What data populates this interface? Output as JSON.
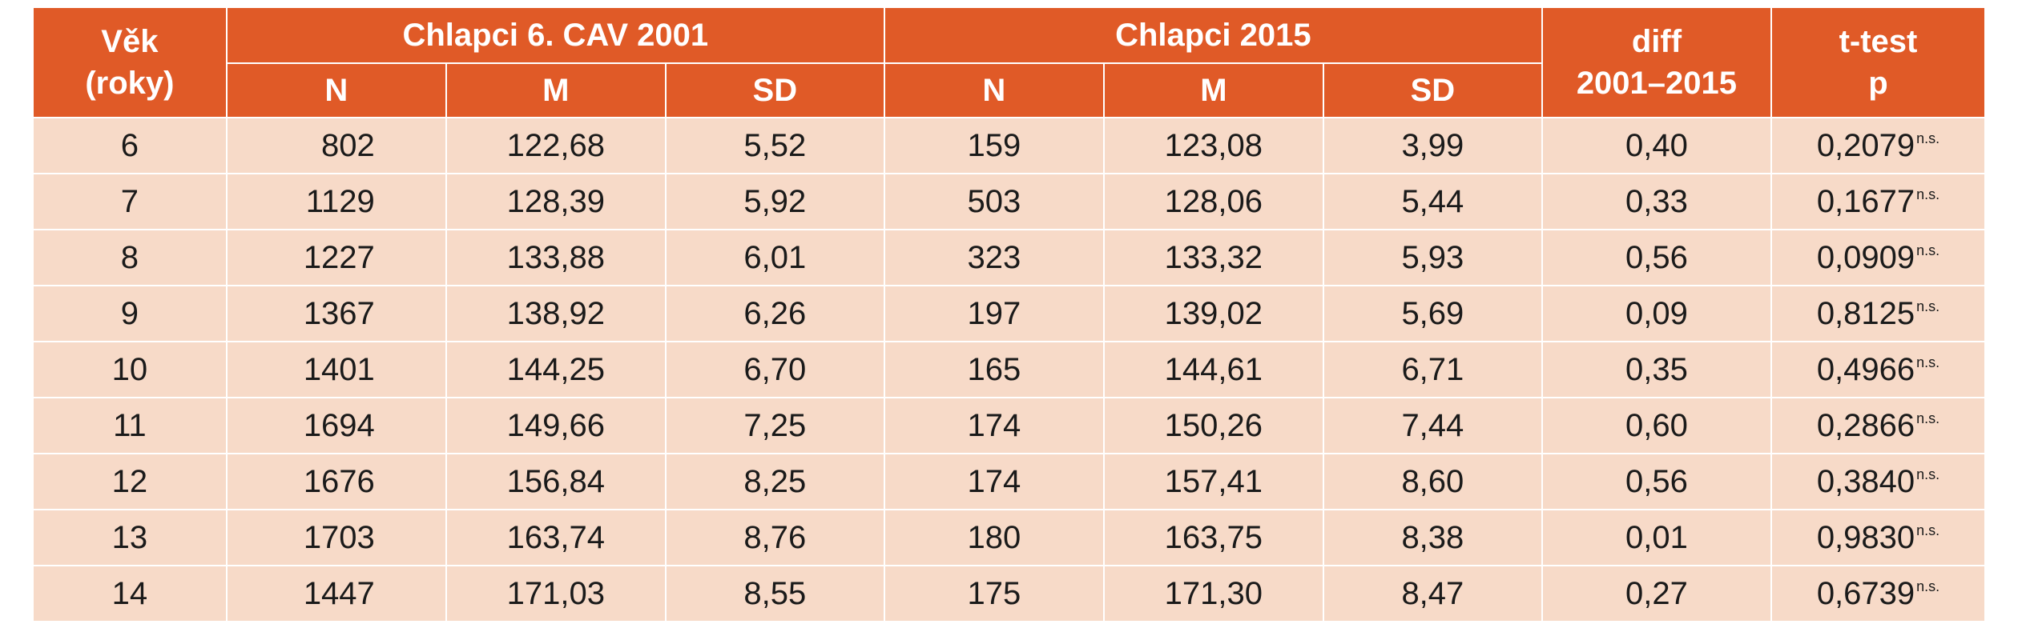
{
  "header": {
    "age_line1": "Věk",
    "age_line2": "(roky)",
    "group_2001": "Chlapci 6. CAV 2001",
    "group_2015": "Chlapci 2015",
    "diff_line1": "diff",
    "diff_line2": "2001–2015",
    "ttest_line1": "t-test",
    "ttest_line2": "p",
    "n": "N",
    "m": "M",
    "sd": "SD"
  },
  "colors": {
    "header_bg": "#e05a27",
    "row_bg": "#f7dac8"
  },
  "rows": [
    {
      "age": "6",
      "n2001": "802",
      "m2001": "122,68",
      "sd2001": "5,52",
      "n2015": "159",
      "m2015": "123,08",
      "sd2015": "3,99",
      "diff": "0,40",
      "p": "0,2079",
      "sig": "n.s."
    },
    {
      "age": "7",
      "n2001": "1129",
      "m2001": "128,39",
      "sd2001": "5,92",
      "n2015": "503",
      "m2015": "128,06",
      "sd2015": "5,44",
      "diff": "0,33",
      "p": "0,1677",
      "sig": "n.s."
    },
    {
      "age": "8",
      "n2001": "1227",
      "m2001": "133,88",
      "sd2001": "6,01",
      "n2015": "323",
      "m2015": "133,32",
      "sd2015": "5,93",
      "diff": "0,56",
      "p": "0,0909",
      "sig": "n.s."
    },
    {
      "age": "9",
      "n2001": "1367",
      "m2001": "138,92",
      "sd2001": "6,26",
      "n2015": "197",
      "m2015": "139,02",
      "sd2015": "5,69",
      "diff": "0,09",
      "p": "0,8125",
      "sig": "n.s."
    },
    {
      "age": "10",
      "n2001": "1401",
      "m2001": "144,25",
      "sd2001": "6,70",
      "n2015": "165",
      "m2015": "144,61",
      "sd2015": "6,71",
      "diff": "0,35",
      "p": "0,4966",
      "sig": "n.s."
    },
    {
      "age": "11",
      "n2001": "1694",
      "m2001": "149,66",
      "sd2001": "7,25",
      "n2015": "174",
      "m2015": "150,26",
      "sd2015": "7,44",
      "diff": "0,60",
      "p": "0,2866",
      "sig": "n.s."
    },
    {
      "age": "12",
      "n2001": "1676",
      "m2001": "156,84",
      "sd2001": "8,25",
      "n2015": "174",
      "m2015": "157,41",
      "sd2015": "8,60",
      "diff": "0,56",
      "p": "0,3840",
      "sig": "n.s."
    },
    {
      "age": "13",
      "n2001": "1703",
      "m2001": "163,74",
      "sd2001": "8,76",
      "n2015": "180",
      "m2015": "163,75",
      "sd2015": "8,38",
      "diff": "0,01",
      "p": "0,9830",
      "sig": "n.s."
    },
    {
      "age": "14",
      "n2001": "1447",
      "m2001": "171,03",
      "sd2001": "8,55",
      "n2015": "175",
      "m2015": "171,30",
      "sd2015": "8,47",
      "diff": "0,27",
      "p": "0,6739",
      "sig": "n.s."
    }
  ]
}
